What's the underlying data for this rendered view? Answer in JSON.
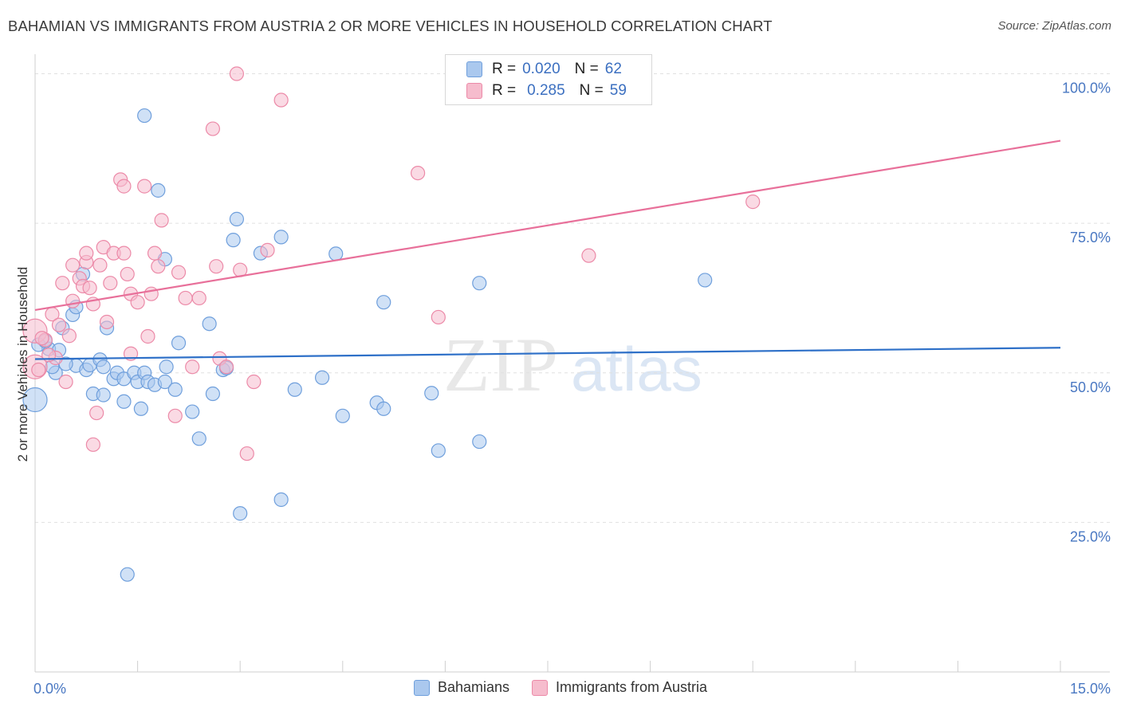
{
  "title": "BAHAMIAN VS IMMIGRANTS FROM AUSTRIA 2 OR MORE VEHICLES IN HOUSEHOLD CORRELATION CHART",
  "source": "Source: ZipAtlas.com",
  "watermark": {
    "zip": "ZIP",
    "atlas": "atlas"
  },
  "legend": {
    "rows": [
      {
        "r_label": "R =",
        "r_value": "0.020",
        "n_label": "N =",
        "n_value": "62"
      },
      {
        "r_label": "R =",
        "r_value": "0.285",
        "n_label": "N =",
        "n_value": "59"
      }
    ]
  },
  "bottom_legend": [
    "Bahamians",
    "Immigrants from Austria"
  ],
  "colors": {
    "blue_fill": "#aac8ee",
    "blue_stroke": "#6f9fdc",
    "blue_line": "#2e70c8",
    "pink_fill": "#f6bccd",
    "pink_stroke": "#ec8aa8",
    "pink_line": "#e8709a",
    "tick_label": "#4a78c2",
    "grid": "#e0e0e0"
  },
  "chart_data": {
    "type": "scatter",
    "ylabel": "2 or more Vehicles in Household",
    "xlim": [
      0,
      15
    ],
    "ylim": [
      0,
      103
    ],
    "x_tick_labels": [
      "0.0%",
      "15.0%"
    ],
    "y_ticks": [
      25,
      50,
      75,
      100
    ],
    "y_tick_labels": [
      "25.0%",
      "50.0%",
      "75.0%",
      "100.0%"
    ],
    "series": [
      {
        "name": "Bahamians",
        "trend": {
          "x0": 0,
          "y0": 52.3,
          "x1": 15,
          "y1": 54.2
        },
        "points": [
          [
            0.0,
            45.5
          ],
          [
            0.2,
            54.0
          ],
          [
            0.35,
            53.8
          ],
          [
            0.3,
            50.0
          ],
          [
            0.4,
            57.5
          ],
          [
            0.55,
            59.7
          ],
          [
            0.6,
            61.0
          ],
          [
            0.7,
            66.5
          ],
          [
            0.6,
            51.2
          ],
          [
            0.75,
            50.5
          ],
          [
            0.8,
            51.3
          ],
          [
            0.95,
            52.2
          ],
          [
            0.85,
            46.5
          ],
          [
            1.0,
            46.3
          ],
          [
            1.05,
            57.5
          ],
          [
            1.15,
            49.0
          ],
          [
            1.2,
            50.0
          ],
          [
            1.3,
            49.0
          ],
          [
            1.3,
            45.2
          ],
          [
            1.45,
            50.0
          ],
          [
            1.5,
            48.5
          ],
          [
            1.55,
            44.0
          ],
          [
            1.6,
            50.0
          ],
          [
            1.65,
            48.5
          ],
          [
            1.75,
            48.0
          ],
          [
            1.8,
            80.5
          ],
          [
            1.9,
            69.0
          ],
          [
            1.9,
            48.5
          ],
          [
            1.92,
            51.0
          ],
          [
            2.05,
            47.2
          ],
          [
            2.1,
            55.0
          ],
          [
            2.3,
            43.5
          ],
          [
            2.4,
            39.0
          ],
          [
            2.55,
            58.2
          ],
          [
            2.6,
            46.5
          ],
          [
            2.75,
            50.5
          ],
          [
            2.9,
            72.2
          ],
          [
            2.95,
            75.7
          ],
          [
            3.0,
            26.5
          ],
          [
            3.3,
            70.0
          ],
          [
            3.6,
            72.7
          ],
          [
            3.6,
            28.8
          ],
          [
            3.8,
            47.2
          ],
          [
            4.2,
            49.2
          ],
          [
            4.4,
            69.9
          ],
          [
            4.5,
            42.8
          ],
          [
            5.0,
            45.0
          ],
          [
            5.1,
            61.8
          ],
          [
            5.1,
            44.0
          ],
          [
            5.8,
            46.6
          ],
          [
            5.9,
            37.0
          ],
          [
            6.5,
            38.5
          ],
          [
            6.5,
            65.0
          ],
          [
            9.8,
            65.5
          ],
          [
            1.6,
            93.0
          ],
          [
            1.35,
            16.3
          ],
          [
            0.05,
            54.7
          ],
          [
            0.15,
            55.3
          ],
          [
            0.45,
            51.5
          ],
          [
            1.0,
            51.0
          ],
          [
            2.8,
            50.8
          ],
          [
            0.25,
            51.0
          ]
        ]
      },
      {
        "name": "Immigrants from Austria",
        "trend": {
          "x0": 0,
          "y0": 60.5,
          "x1": 15,
          "y1": 88.8
        },
        "points": [
          [
            0.0,
            51.0
          ],
          [
            0.0,
            57.0
          ],
          [
            0.15,
            55.5
          ],
          [
            0.25,
            59.8
          ],
          [
            0.3,
            52.5
          ],
          [
            0.35,
            58.0
          ],
          [
            0.4,
            65.0
          ],
          [
            0.45,
            48.5
          ],
          [
            0.5,
            56.2
          ],
          [
            0.55,
            68.0
          ],
          [
            0.55,
            62.0
          ],
          [
            0.65,
            65.8
          ],
          [
            0.7,
            64.5
          ],
          [
            0.75,
            68.5
          ],
          [
            0.75,
            70.0
          ],
          [
            0.8,
            64.2
          ],
          [
            0.85,
            61.5
          ],
          [
            0.85,
            38.0
          ],
          [
            0.9,
            43.3
          ],
          [
            0.95,
            68.0
          ],
          [
            1.0,
            71.0
          ],
          [
            1.05,
            58.5
          ],
          [
            1.1,
            65.0
          ],
          [
            1.15,
            70.0
          ],
          [
            1.25,
            82.3
          ],
          [
            1.3,
            70.0
          ],
          [
            1.3,
            81.2
          ],
          [
            1.35,
            66.5
          ],
          [
            1.4,
            53.2
          ],
          [
            1.4,
            63.2
          ],
          [
            1.5,
            61.8
          ],
          [
            1.6,
            81.2
          ],
          [
            1.65,
            56.1
          ],
          [
            1.7,
            63.2
          ],
          [
            1.75,
            70.0
          ],
          [
            1.8,
            67.8
          ],
          [
            1.85,
            75.5
          ],
          [
            2.05,
            42.8
          ],
          [
            2.1,
            66.8
          ],
          [
            2.2,
            62.5
          ],
          [
            2.3,
            51.0
          ],
          [
            2.4,
            62.5
          ],
          [
            2.6,
            90.8
          ],
          [
            2.65,
            67.8
          ],
          [
            2.7,
            52.4
          ],
          [
            2.8,
            51.0
          ],
          [
            2.95,
            100.0
          ],
          [
            3.0,
            67.2
          ],
          [
            3.1,
            36.5
          ],
          [
            3.2,
            48.5
          ],
          [
            3.4,
            70.5
          ],
          [
            3.6,
            95.6
          ],
          [
            5.6,
            83.4
          ],
          [
            5.9,
            59.3
          ],
          [
            8.1,
            69.6
          ],
          [
            10.5,
            78.6
          ],
          [
            0.1,
            55.8
          ],
          [
            0.2,
            53.0
          ],
          [
            0.05,
            50.5
          ]
        ]
      }
    ]
  }
}
